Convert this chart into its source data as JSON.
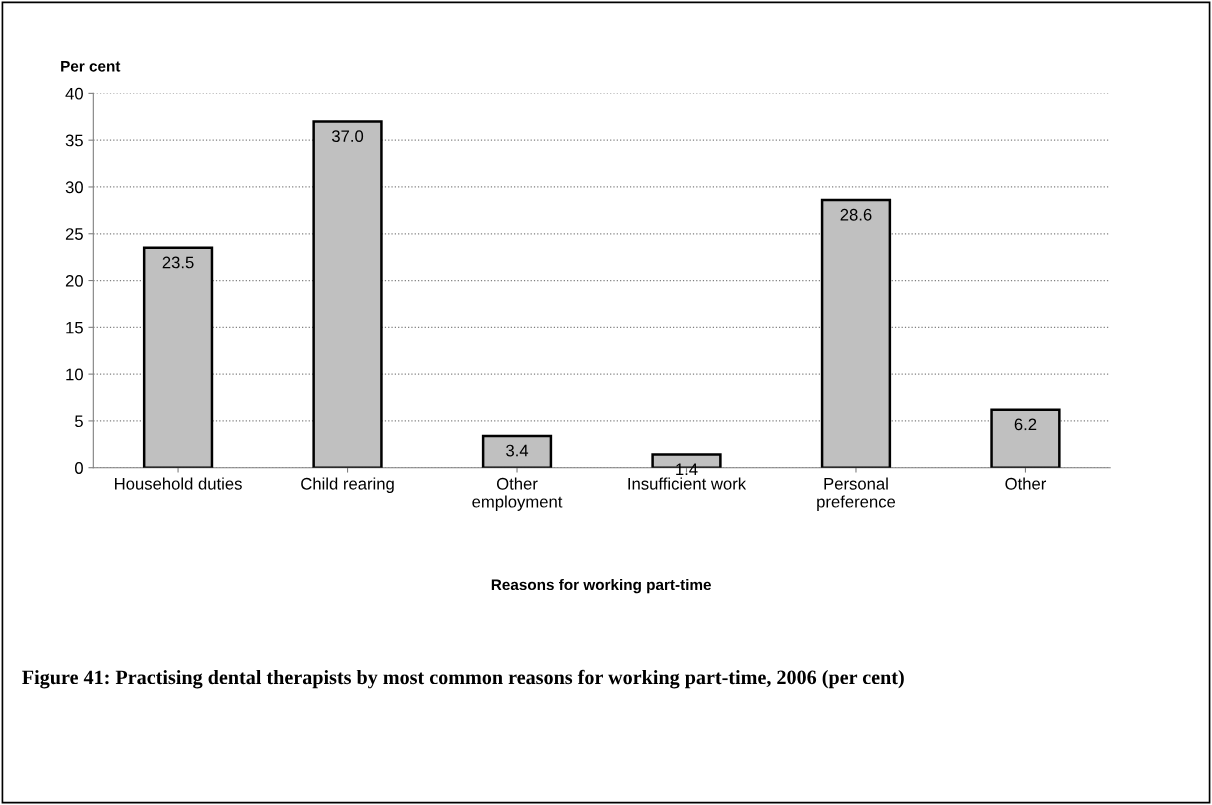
{
  "chart_data": {
    "type": "bar",
    "title": "Figure 41: Practising dental therapists by most common reasons for working part-time, 2006 (per cent)",
    "xlabel": "Reasons for working part-time",
    "ylabel": "Per cent",
    "categories": [
      "Household duties",
      "Child rearing",
      "Other\nemployment",
      "Insufficient work",
      "Personal\npreference",
      "Other"
    ],
    "values": [
      23.5,
      37.0,
      3.4,
      1.4,
      28.6,
      6.2
    ],
    "value_labels": [
      "23.5",
      "37.0",
      "3.4",
      "1.4",
      "28.6",
      "6.2"
    ],
    "color": "#c0c0c0",
    "ylim": [
      0,
      40
    ],
    "yticks": [
      0,
      5,
      10,
      15,
      20,
      25,
      30,
      35,
      40
    ],
    "grid": "y"
  }
}
